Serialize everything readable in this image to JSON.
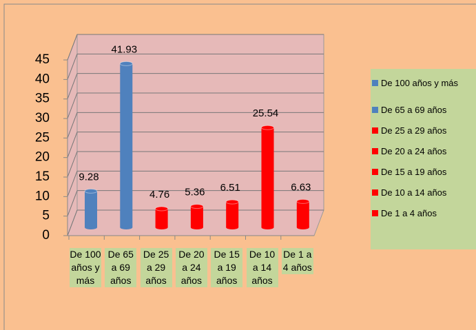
{
  "chart_data": {
    "type": "bar",
    "categories": [
      "De 100 años y más",
      "De 65 a 69 años",
      "De 25 a 29 años",
      "De 20 a 24 años",
      "De 15 a 19 años",
      "De 10 a 14 años",
      "De 1 a 4 años"
    ],
    "values": [
      9.28,
      41.93,
      4.76,
      5.36,
      6.51,
      25.54,
      6.63
    ],
    "colors": [
      "#4f81bd",
      "#4f81bd",
      "#ff0000",
      "#ff0000",
      "#ff0000",
      "#ff0000",
      "#ff0000"
    ],
    "ylim": [
      0,
      45
    ],
    "yticks": [
      0,
      5,
      10,
      15,
      20,
      25,
      30,
      35,
      40,
      45
    ],
    "grid": true
  }
}
